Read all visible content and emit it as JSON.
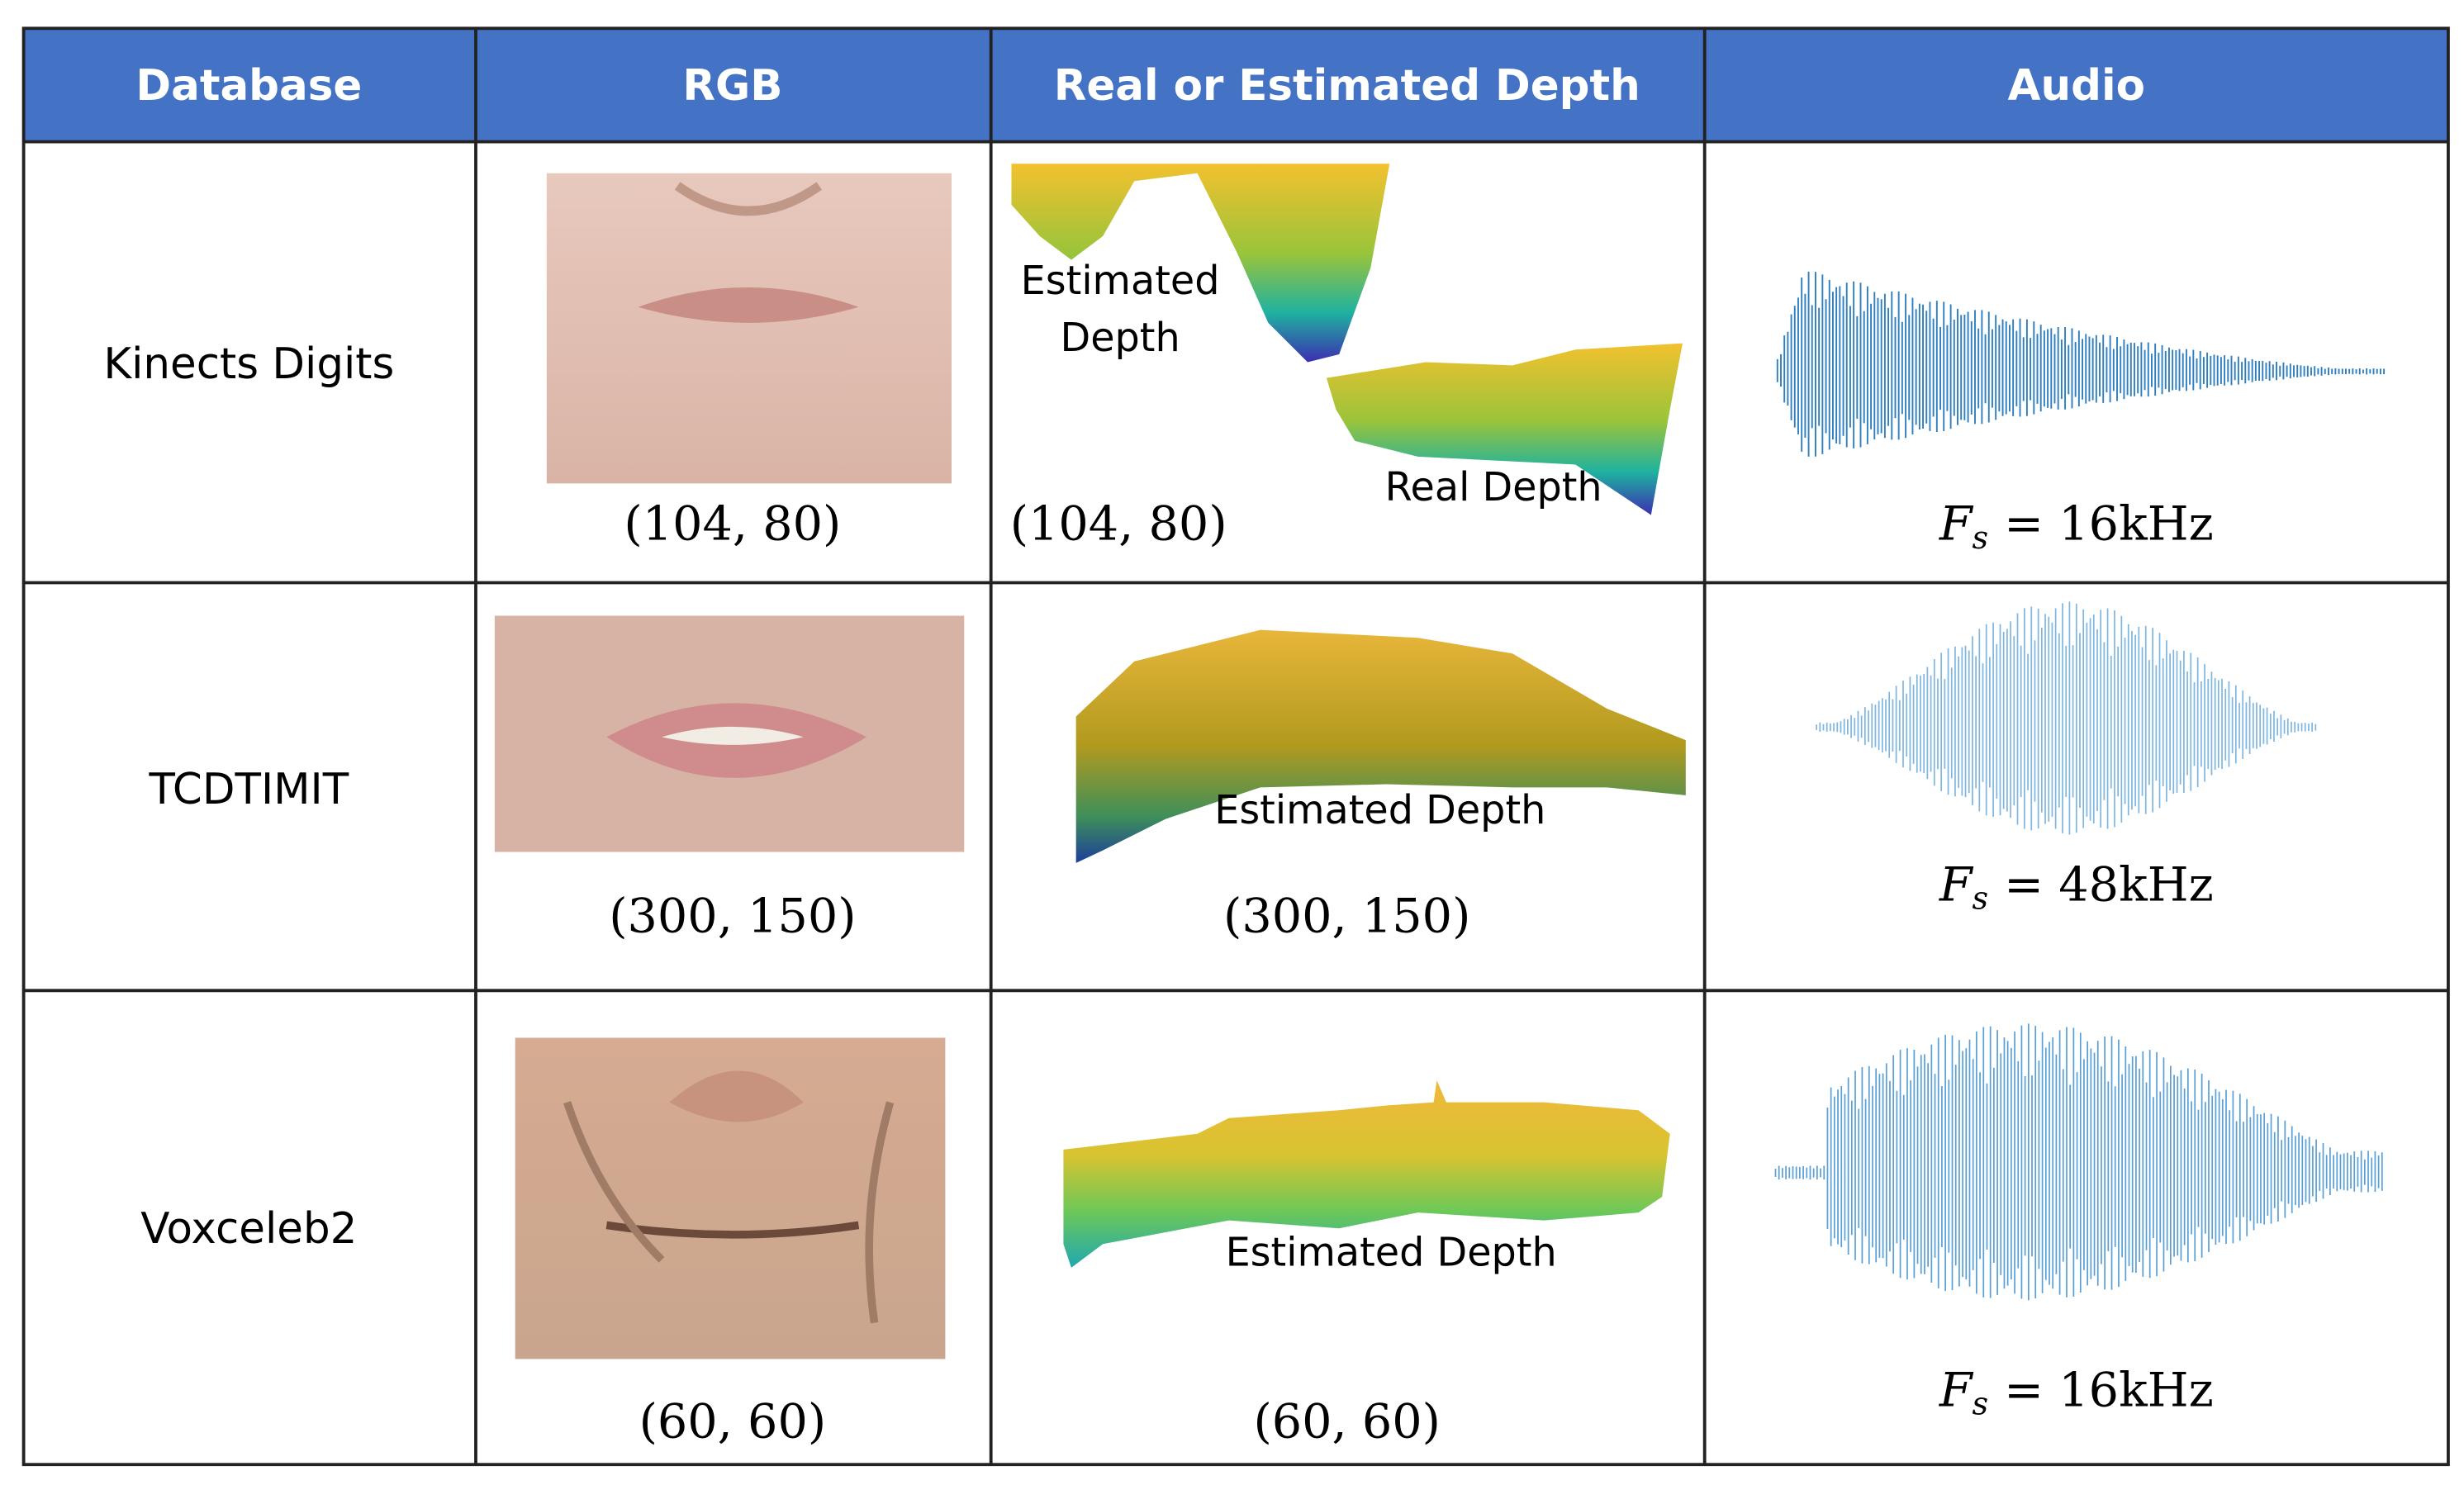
{
  "table": {
    "headers": [
      "Database",
      "RGB",
      "Real or Estimated Depth",
      "Audio"
    ],
    "rows": [
      {
        "database": "Kinects Digits",
        "rgb": "(104, 80)",
        "depth": "(104, 80)",
        "depth_labels": [
          [
            "Estimated",
            "Depth"
          ],
          [
            "Real Depth"
          ]
        ],
        "audio": {
          "lhs": "F",
          "sub": "s",
          "rhs": "= 16kHz"
        }
      },
      {
        "database": "TCDTIMIT",
        "rgb": "(300, 150)",
        "depth": "(300, 150)",
        "depth_labels": [
          [
            "Estimated Depth"
          ]
        ],
        "audio": {
          "lhs": "F",
          "sub": "s",
          "rhs": "= 48kHz"
        }
      },
      {
        "database": "Voxceleb2",
        "rgb": "(60, 60)",
        "depth": "(60, 60)",
        "depth_labels": [
          [
            "Estimated Depth"
          ]
        ],
        "audio": {
          "lhs": "F",
          "sub": "s",
          "rhs": "= 16kHz"
        }
      }
    ]
  }
}
